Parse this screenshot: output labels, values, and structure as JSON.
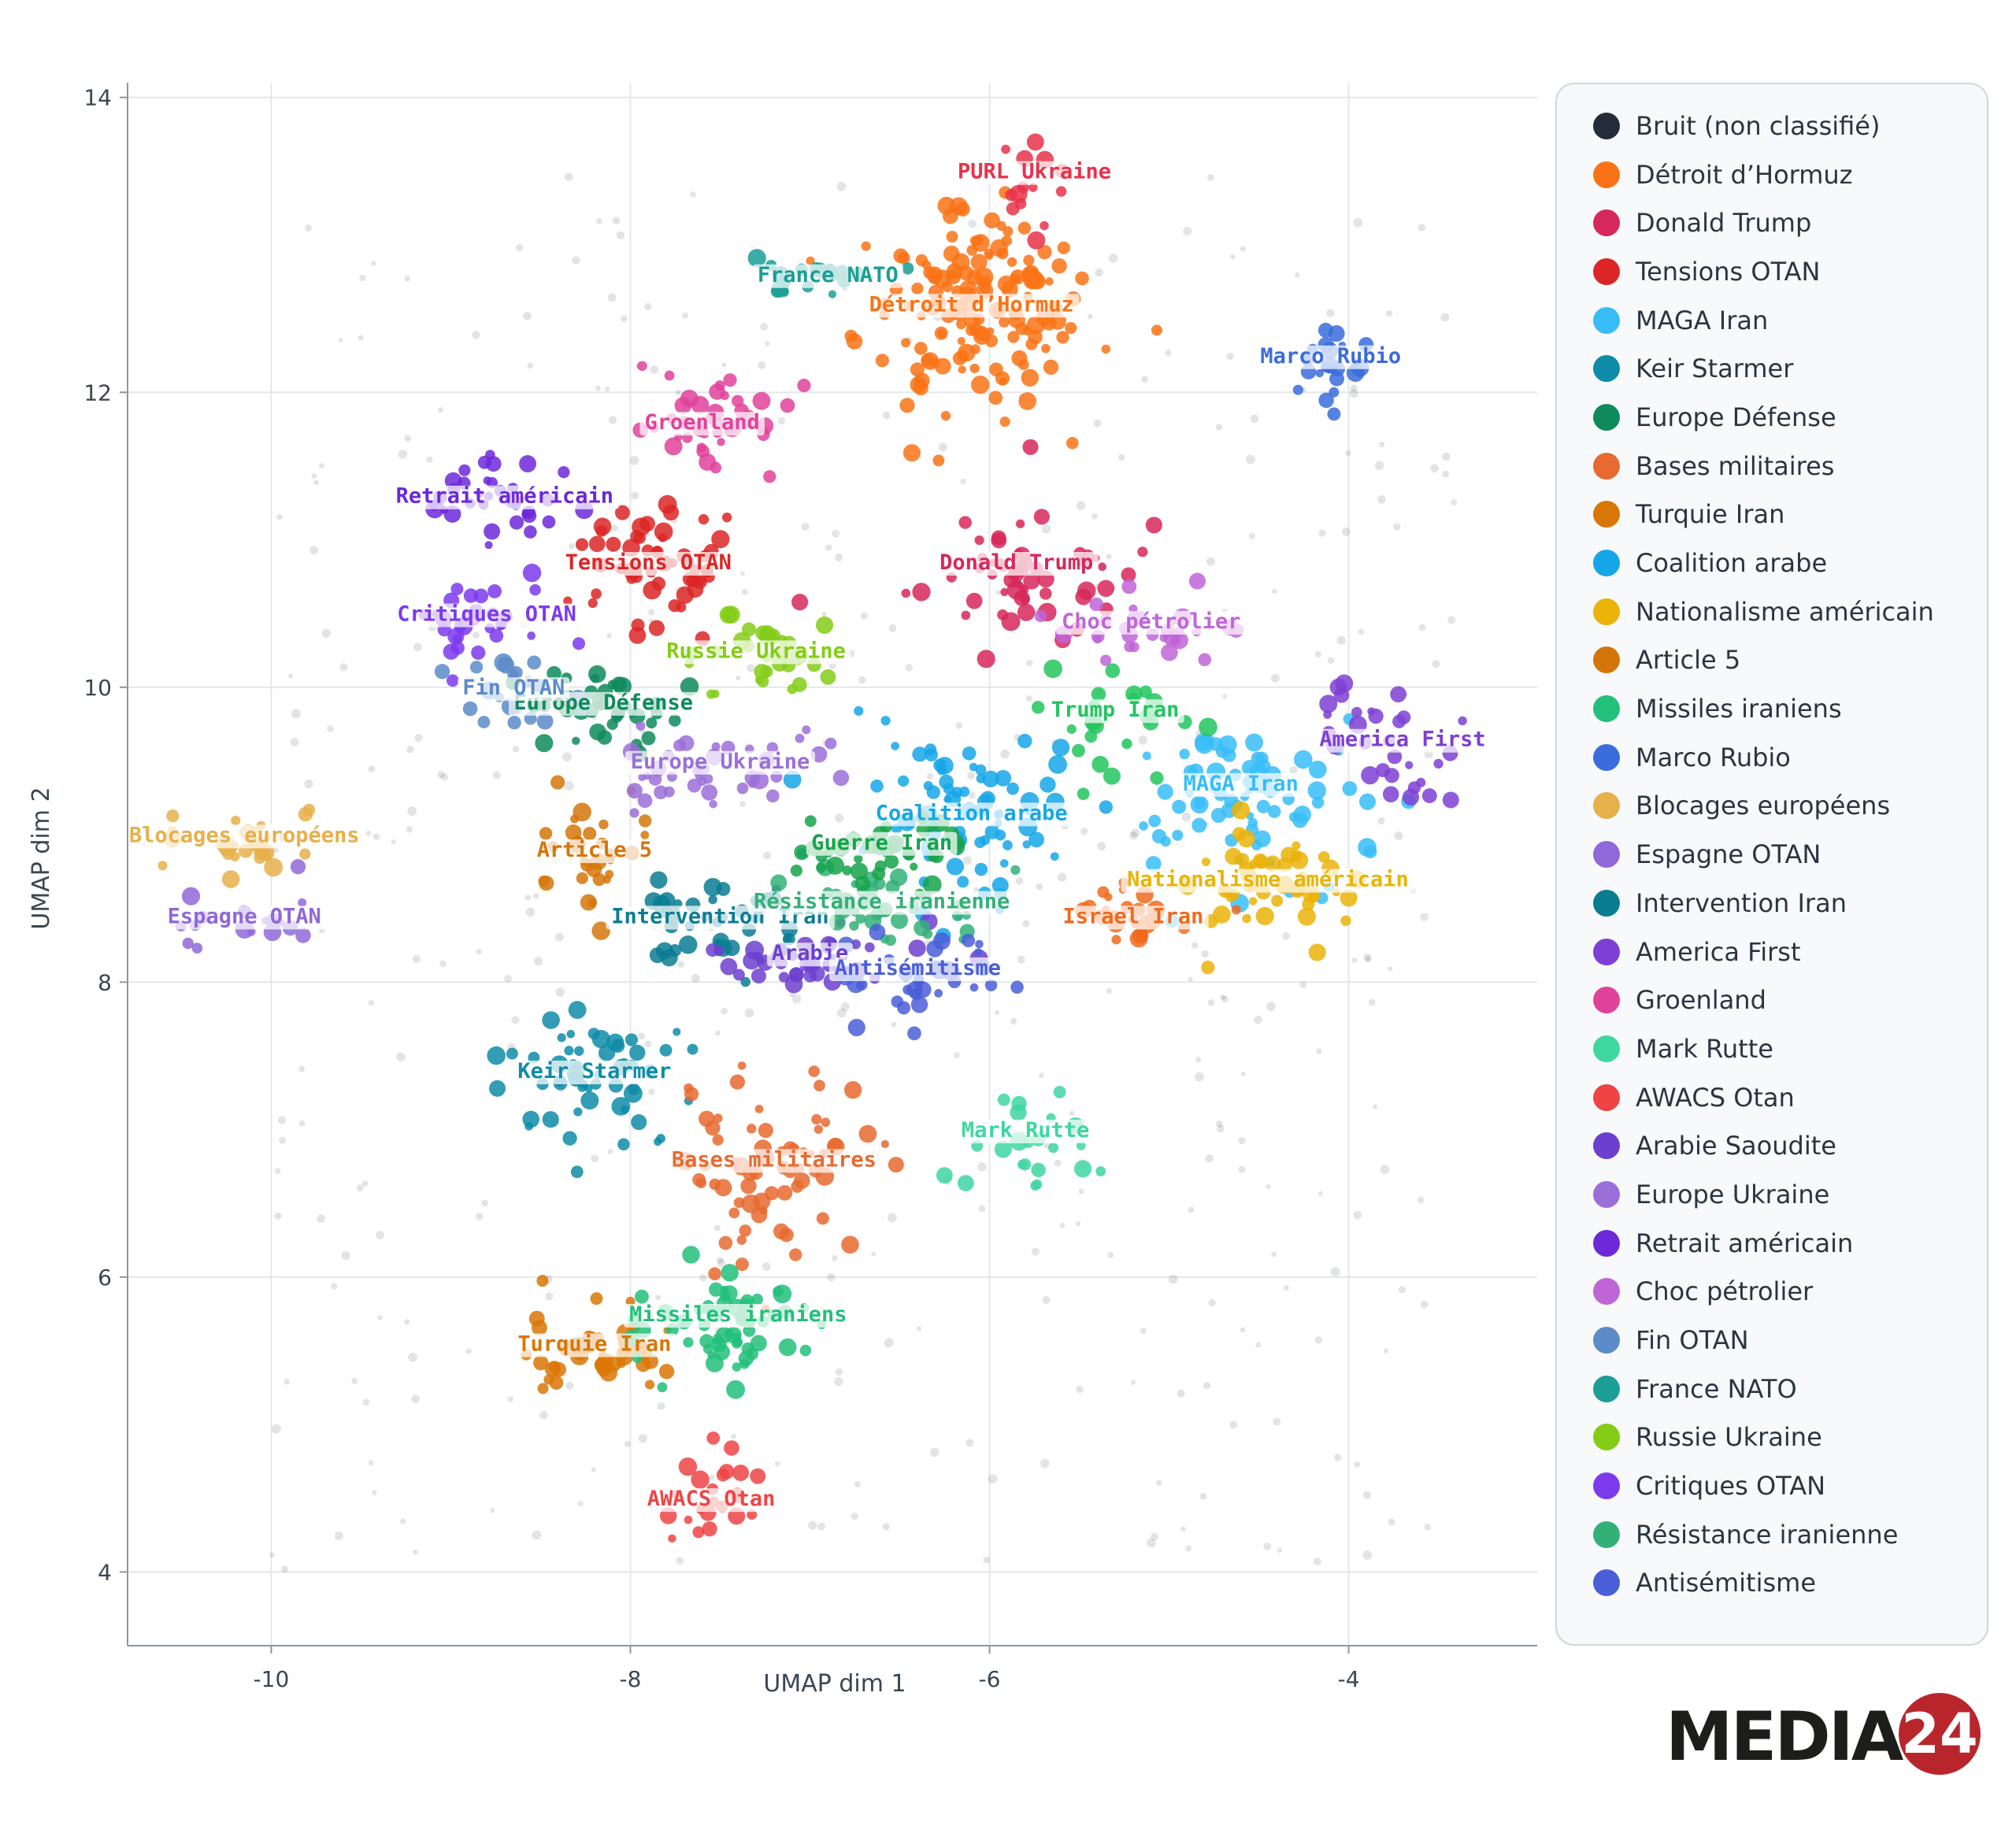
{
  "chart_data": {
    "type": "scatter",
    "title": "",
    "xlabel": "UMAP dim 1",
    "ylabel": "UMAP dim 2",
    "xlim": [
      -10.8,
      -2.95
    ],
    "ylim": [
      3.5,
      14.1
    ],
    "xticks": [
      -10,
      -8,
      -6,
      -4
    ],
    "yticks": [
      4,
      6,
      8,
      10,
      12,
      14
    ],
    "grid": true,
    "legend_position": "right",
    "noise": {
      "name": "Bruit (non classifié)",
      "color": "#232c38"
    },
    "series": [
      {
        "name": "Détroit d’Hormuz",
        "color": "#f97316",
        "label": "Détroit d’Hormuz",
        "cx": -6.1,
        "cy": 12.55,
        "sx": 0.42,
        "sy": 0.45,
        "n": 150
      },
      {
        "name": "Donald Trump",
        "color": "#d6285a",
        "label": "Donald Trump",
        "cx": -5.85,
        "cy": 10.8,
        "sx": 0.4,
        "sy": 0.35,
        "n": 55
      },
      {
        "name": "Tensions OTAN",
        "color": "#dc2626",
        "label": "Tensions OTAN",
        "cx": -7.9,
        "cy": 10.8,
        "sx": 0.35,
        "sy": 0.3,
        "n": 55
      },
      {
        "name": "MAGA Iran",
        "color": "#38bdf8",
        "label": "MAGA Iran",
        "cx": -4.6,
        "cy": 9.3,
        "sx": 0.45,
        "sy": 0.35,
        "n": 75
      },
      {
        "name": "Keir Starmer",
        "color": "#0e8ca8",
        "label": "Keir Starmer",
        "cx": -8.2,
        "cy": 7.35,
        "sx": 0.4,
        "sy": 0.3,
        "n": 55
      },
      {
        "name": "Europe Défense",
        "color": "#0e8a5c",
        "label": "Europe Défense",
        "cx": -8.15,
        "cy": 9.85,
        "sx": 0.3,
        "sy": 0.2,
        "n": 40
      },
      {
        "name": "Bases militaires",
        "color": "#e86a30",
        "label": "Bases militaires",
        "cx": -7.2,
        "cy": 6.75,
        "sx": 0.4,
        "sy": 0.4,
        "n": 70
      },
      {
        "name": "Turquie Iran",
        "color": "#d97706",
        "label": "Turquie Iran",
        "cx": -8.2,
        "cy": 5.5,
        "sx": 0.25,
        "sy": 0.18,
        "n": 50
      },
      {
        "name": "Coalition arabe",
        "color": "#16a6e8",
        "label": "Coalition arabe",
        "cx": -6.1,
        "cy": 9.1,
        "sx": 0.4,
        "sy": 0.4,
        "n": 80
      },
      {
        "name": "Nationalisme américain",
        "color": "#eab308",
        "label": "Nationalisme américain",
        "cx": -4.45,
        "cy": 8.65,
        "sx": 0.35,
        "sy": 0.25,
        "n": 50
      },
      {
        "name": "Article 5",
        "color": "#d4750b",
        "label": "Article 5",
        "cx": -8.2,
        "cy": 8.85,
        "sx": 0.25,
        "sy": 0.3,
        "n": 30
      },
      {
        "name": "Missiles iraniens",
        "color": "#22c07a",
        "label": "Missiles iraniens",
        "cx": -7.4,
        "cy": 5.7,
        "sx": 0.3,
        "sy": 0.25,
        "n": 60
      },
      {
        "name": "Marco Rubio",
        "color": "#3b6cdc",
        "label": "Marco Rubio",
        "cx": -4.1,
        "cy": 12.2,
        "sx": 0.12,
        "sy": 0.18,
        "n": 22
      },
      {
        "name": "Blocages européens",
        "color": "#e6b04a",
        "label": "Blocages européens",
        "cx": -10.15,
        "cy": 8.95,
        "sx": 0.25,
        "sy": 0.15,
        "n": 30
      },
      {
        "name": "Espagne OTAN",
        "color": "#9068d8",
        "label": "Espagne OTAN",
        "cx": -10.15,
        "cy": 8.4,
        "sx": 0.3,
        "sy": 0.15,
        "n": 18
      },
      {
        "name": "Intervention Iran",
        "color": "#0b7d93",
        "label": "Intervention Iran",
        "cx": -7.5,
        "cy": 8.4,
        "sx": 0.35,
        "sy": 0.2,
        "n": 45
      },
      {
        "name": "America First",
        "color": "#7e3fd4",
        "label": "America First",
        "cx": -3.7,
        "cy": 9.6,
        "sx": 0.3,
        "sy": 0.3,
        "n": 30
      },
      {
        "name": "Groenland",
        "color": "#e0429a",
        "label": "Groenland",
        "cx": -7.6,
        "cy": 11.75,
        "sx": 0.3,
        "sy": 0.2,
        "n": 40
      },
      {
        "name": "Mark Rutte",
        "color": "#3fd6a0",
        "label": "Mark Rutte",
        "cx": -5.8,
        "cy": 6.95,
        "sx": 0.2,
        "sy": 0.3,
        "n": 22
      },
      {
        "name": "AWACS Otan",
        "color": "#ef4444",
        "label": "AWACS Otan",
        "cx": -7.55,
        "cy": 4.45,
        "sx": 0.15,
        "sy": 0.3,
        "n": 22
      },
      {
        "name": "Arabie Saoudite",
        "color": "#6d3fcf",
        "label": "Arabie",
        "cx": -7.0,
        "cy": 8.15,
        "sx": 0.4,
        "sy": 0.2,
        "n": 40
      },
      {
        "name": "Europe Ukraine",
        "color": "#9b6fd8",
        "label": "Europe Ukraine",
        "cx": -7.5,
        "cy": 9.45,
        "sx": 0.4,
        "sy": 0.2,
        "n": 40
      },
      {
        "name": "Retrait américain",
        "color": "#6d28d9",
        "label": "Retrait américain",
        "cx": -8.7,
        "cy": 11.25,
        "sx": 0.3,
        "sy": 0.2,
        "n": 35
      },
      {
        "name": "Choc pétrolier",
        "color": "#c065d8",
        "label": "Choc pétrolier",
        "cx": -5.1,
        "cy": 10.4,
        "sx": 0.35,
        "sy": 0.15,
        "n": 30
      },
      {
        "name": "Fin OTAN",
        "color": "#5b8bc9",
        "label": "Fin OTAN",
        "cx": -8.65,
        "cy": 9.95,
        "sx": 0.2,
        "sy": 0.2,
        "n": 22
      },
      {
        "name": "France NATO",
        "color": "#1a9e96",
        "label": "France NATO",
        "cx": -6.9,
        "cy": 12.75,
        "sx": 0.25,
        "sy": 0.1,
        "n": 20
      },
      {
        "name": "Russie Ukraine",
        "color": "#84cc16",
        "label": "Russie Ukraine",
        "cx": -7.3,
        "cy": 10.2,
        "sx": 0.3,
        "sy": 0.25,
        "n": 30
      },
      {
        "name": "Critiques OTAN",
        "color": "#7c3aed",
        "label": "Critiques OTAN",
        "cx": -8.8,
        "cy": 10.45,
        "sx": 0.25,
        "sy": 0.25,
        "n": 30
      },
      {
        "name": "Résistance iranienne",
        "color": "#33b078",
        "label": "Résistance iranienne",
        "cx": -6.6,
        "cy": 8.5,
        "sx": 0.4,
        "sy": 0.2,
        "n": 40
      },
      {
        "name": "Antisémitisme",
        "color": "#4a5ed8",
        "label": "Antisémitisme",
        "cx": -6.4,
        "cy": 8.05,
        "sx": 0.3,
        "sy": 0.2,
        "n": 35
      },
      {
        "name": "Trump Iran",
        "color": "#22c55e",
        "label": "Trump Iran",
        "cx": -5.3,
        "cy": 9.8,
        "sx": 0.3,
        "sy": 0.25,
        "n": 25
      },
      {
        "name": "Guerre Iran",
        "color": "#16a34a",
        "label": "Guerre Iran",
        "cx": -6.6,
        "cy": 8.9,
        "sx": 0.3,
        "sy": 0.2,
        "n": 40
      },
      {
        "name": "Israel Iran",
        "color": "#f06a1c",
        "label": "Israel Iran",
        "cx": -5.2,
        "cy": 8.4,
        "sx": 0.2,
        "sy": 0.15,
        "n": 25
      },
      {
        "name": "PURL Ukraine",
        "color": "#e8324a",
        "label": "PURL Ukraine",
        "cx": -5.75,
        "cy": 13.45,
        "sx": 0.12,
        "sy": 0.2,
        "n": 14
      }
    ]
  },
  "legend": {
    "items": [
      {
        "name": "Bruit (non classifié)",
        "color": "#232c38"
      },
      {
        "name": "Détroit d’Hormuz",
        "color": "#f97316"
      },
      {
        "name": "Donald Trump",
        "color": "#d6285a"
      },
      {
        "name": "Tensions OTAN",
        "color": "#dc2626"
      },
      {
        "name": "MAGA Iran",
        "color": "#38bdf8"
      },
      {
        "name": "Keir Starmer",
        "color": "#0e8ca8"
      },
      {
        "name": "Europe Défense",
        "color": "#0e8a5c"
      },
      {
        "name": "Bases militaires",
        "color": "#e86a30"
      },
      {
        "name": "Turquie Iran",
        "color": "#d97706"
      },
      {
        "name": "Coalition arabe",
        "color": "#16a6e8"
      },
      {
        "name": "Nationalisme américain",
        "color": "#eab308"
      },
      {
        "name": "Article 5",
        "color": "#d4750b"
      },
      {
        "name": "Missiles iraniens",
        "color": "#22c07a"
      },
      {
        "name": "Marco Rubio",
        "color": "#3b6cdc"
      },
      {
        "name": "Blocages européens",
        "color": "#e6b04a"
      },
      {
        "name": "Espagne OTAN",
        "color": "#9068d8"
      },
      {
        "name": "Intervention Iran",
        "color": "#0b7d93"
      },
      {
        "name": "America First",
        "color": "#7e3fd4"
      },
      {
        "name": "Groenland",
        "color": "#e0429a"
      },
      {
        "name": "Mark Rutte",
        "color": "#3fd6a0"
      },
      {
        "name": "AWACS Otan",
        "color": "#ef4444"
      },
      {
        "name": "Arabie Saoudite",
        "color": "#6d3fcf"
      },
      {
        "name": "Europe Ukraine",
        "color": "#9b6fd8"
      },
      {
        "name": "Retrait américain",
        "color": "#6d28d9"
      },
      {
        "name": "Choc pétrolier",
        "color": "#c065d8"
      },
      {
        "name": "Fin OTAN",
        "color": "#5b8bc9"
      },
      {
        "name": "France NATO",
        "color": "#1a9e96"
      },
      {
        "name": "Russie Ukraine",
        "color": "#84cc16"
      },
      {
        "name": "Critiques OTAN",
        "color": "#7c3aed"
      },
      {
        "name": "Résistance iranienne",
        "color": "#33b078"
      },
      {
        "name": "Antisémitisme",
        "color": "#4a5ed8"
      }
    ]
  },
  "logo": {
    "text": "MEDIAS",
    "number": "24"
  }
}
